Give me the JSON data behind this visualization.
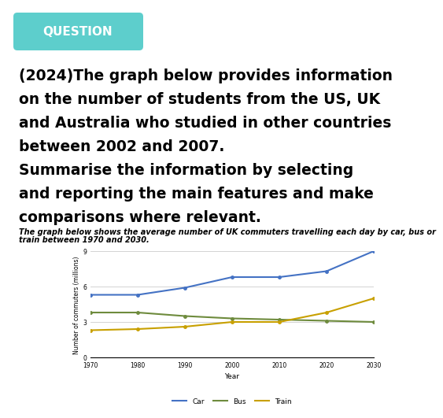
{
  "subtitle": "The graph below shows the average number of UK commuters travelling each day by car, bus or\ntrain between 1970 and 2030.",
  "xlabel": "Year",
  "ylabel": "Number of commuters (millions)",
  "years": [
    1970,
    1980,
    1990,
    2000,
    2010,
    2020,
    2030
  ],
  "car": [
    5.3,
    5.3,
    5.9,
    6.8,
    6.8,
    7.3,
    9.0
  ],
  "bus": [
    3.8,
    3.8,
    3.5,
    3.3,
    3.2,
    3.1,
    3.0
  ],
  "train": [
    2.3,
    2.4,
    2.6,
    3.0,
    3.0,
    3.8,
    5.0
  ],
  "car_color": "#4472C4",
  "bus_color": "#6E8B3D",
  "train_color": "#C8A000",
  "ylim": [
    0,
    9
  ],
  "yticks": [
    0,
    3,
    6,
    9
  ],
  "background_color": "#ffffff",
  "grid_color": "#cccccc",
  "question_bg_top": "#5DCECC",
  "question_bg_bot": "#35AACC",
  "question_text": "QUESTION",
  "main_text_line1": "(2024)The graph below provides information",
  "main_text_line2": "on the number of students from the US, UK",
  "main_text_line3": "and Australia who studied in other countries",
  "main_text_line4": "between 2002 and 2007.",
  "main_text_line5": "Summarise the information by selecting",
  "main_text_line6": "and reporting the main features and make",
  "main_text_line7": "comparisons where relevant.",
  "legend_labels": [
    "Car",
    "Bus",
    "Train"
  ]
}
